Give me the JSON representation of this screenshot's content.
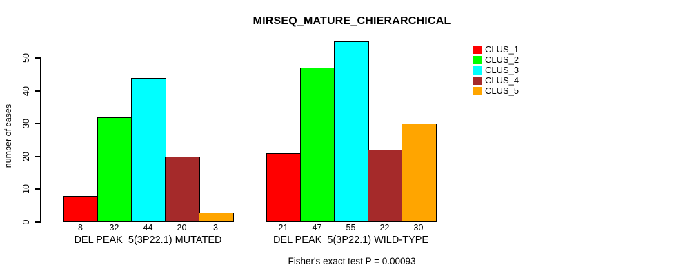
{
  "title": "MIRSEQ_MATURE_CHIERARCHICAL",
  "footer": "Fisher's exact test P = 0.00093",
  "colors": {
    "background": "#FFFFFF",
    "text": "#000000",
    "axis": "#000000"
  },
  "chart_data": {
    "type": "bar",
    "title": "MIRSEQ_MATURE_CHIERARCHICAL",
    "xlabel": "",
    "ylabel": "number of cases",
    "ylim": [
      0,
      55
    ],
    "yticks": [
      0,
      10,
      20,
      30,
      40,
      50
    ],
    "grid": false,
    "legend_position": "right",
    "bar_borders": true,
    "categories": [
      "DEL PEAK  5(3P22.1) MUTATED",
      "DEL PEAK  5(3P22.1) WILD-TYPE"
    ],
    "series": [
      {
        "name": "CLUS_1",
        "color": "#FF0000",
        "values": [
          8,
          21
        ]
      },
      {
        "name": "CLUS_2",
        "color": "#00FF00",
        "values": [
          32,
          47
        ]
      },
      {
        "name": "CLUS_3",
        "color": "#00FFFF",
        "values": [
          44,
          55
        ]
      },
      {
        "name": "CLUS_4",
        "color": "#A52A2A",
        "values": [
          20,
          22
        ]
      },
      {
        "name": "CLUS_5",
        "color": "#FFA500",
        "values": [
          3,
          30
        ]
      }
    ],
    "annotation": "Fisher's exact test P = 0.00093"
  }
}
